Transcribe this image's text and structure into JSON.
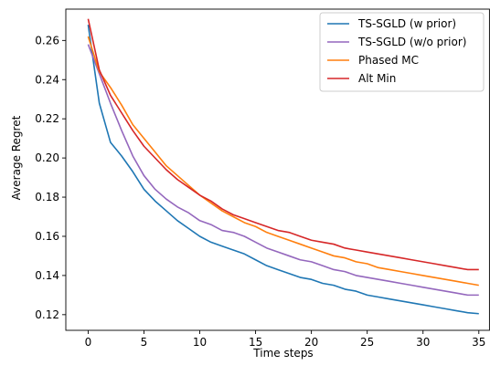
{
  "chart_data": {
    "type": "line",
    "title": "",
    "xlabel": "Time steps",
    "ylabel": "Average Regret",
    "xlim": [
      -2,
      36
    ],
    "ylim": [
      0.112,
      0.276
    ],
    "x_ticks": [
      0,
      5,
      10,
      15,
      20,
      25,
      30,
      35
    ],
    "y_ticks": [
      0.12,
      0.14,
      0.16,
      0.18,
      0.2,
      0.22,
      0.24,
      0.26
    ],
    "grid": false,
    "legend_position": "top-right",
    "x": [
      0,
      1,
      2,
      3,
      4,
      5,
      6,
      7,
      8,
      9,
      10,
      11,
      12,
      13,
      14,
      15,
      16,
      17,
      18,
      19,
      20,
      21,
      22,
      23,
      24,
      25,
      26,
      27,
      28,
      29,
      30,
      31,
      32,
      33,
      34,
      35
    ],
    "series": [
      {
        "name": "TS-SGLD (w prior)",
        "color": "#1f77b4",
        "values": [
          0.268,
          0.228,
          0.208,
          0.201,
          0.193,
          0.184,
          0.178,
          0.173,
          0.168,
          0.164,
          0.16,
          0.157,
          0.155,
          0.153,
          0.151,
          0.148,
          0.145,
          0.143,
          0.141,
          0.139,
          0.138,
          0.136,
          0.135,
          0.133,
          0.132,
          0.13,
          0.129,
          0.128,
          0.127,
          0.126,
          0.125,
          0.124,
          0.123,
          0.122,
          0.121,
          0.1205
        ]
      },
      {
        "name": "TS-SGLD (w/o prior)",
        "color": "#9467bd",
        "values": [
          0.258,
          0.243,
          0.228,
          0.214,
          0.201,
          0.191,
          0.184,
          0.179,
          0.175,
          0.172,
          0.168,
          0.166,
          0.163,
          0.162,
          0.16,
          0.157,
          0.154,
          0.152,
          0.15,
          0.148,
          0.147,
          0.145,
          0.143,
          0.142,
          0.14,
          0.139,
          0.138,
          0.137,
          0.136,
          0.135,
          0.134,
          0.133,
          0.132,
          0.131,
          0.13,
          0.13
        ]
      },
      {
        "name": "Phased MC",
        "color": "#ff7f0e",
        "values": [
          0.262,
          0.244,
          0.236,
          0.227,
          0.217,
          0.21,
          0.203,
          0.196,
          0.191,
          0.186,
          0.181,
          0.177,
          0.173,
          0.17,
          0.167,
          0.165,
          0.162,
          0.16,
          0.158,
          0.156,
          0.154,
          0.152,
          0.15,
          0.149,
          0.147,
          0.146,
          0.144,
          0.143,
          0.142,
          0.141,
          0.14,
          0.139,
          0.138,
          0.137,
          0.136,
          0.135
        ]
      },
      {
        "name": "Alt Min",
        "color": "#d62728",
        "values": [
          0.271,
          0.245,
          0.232,
          0.223,
          0.214,
          0.206,
          0.2,
          0.194,
          0.189,
          0.185,
          0.181,
          0.178,
          0.174,
          0.171,
          0.169,
          0.167,
          0.165,
          0.163,
          0.162,
          0.16,
          0.158,
          0.157,
          0.156,
          0.154,
          0.153,
          0.152,
          0.151,
          0.15,
          0.149,
          0.148,
          0.147,
          0.146,
          0.145,
          0.144,
          0.143,
          0.143
        ]
      }
    ]
  }
}
